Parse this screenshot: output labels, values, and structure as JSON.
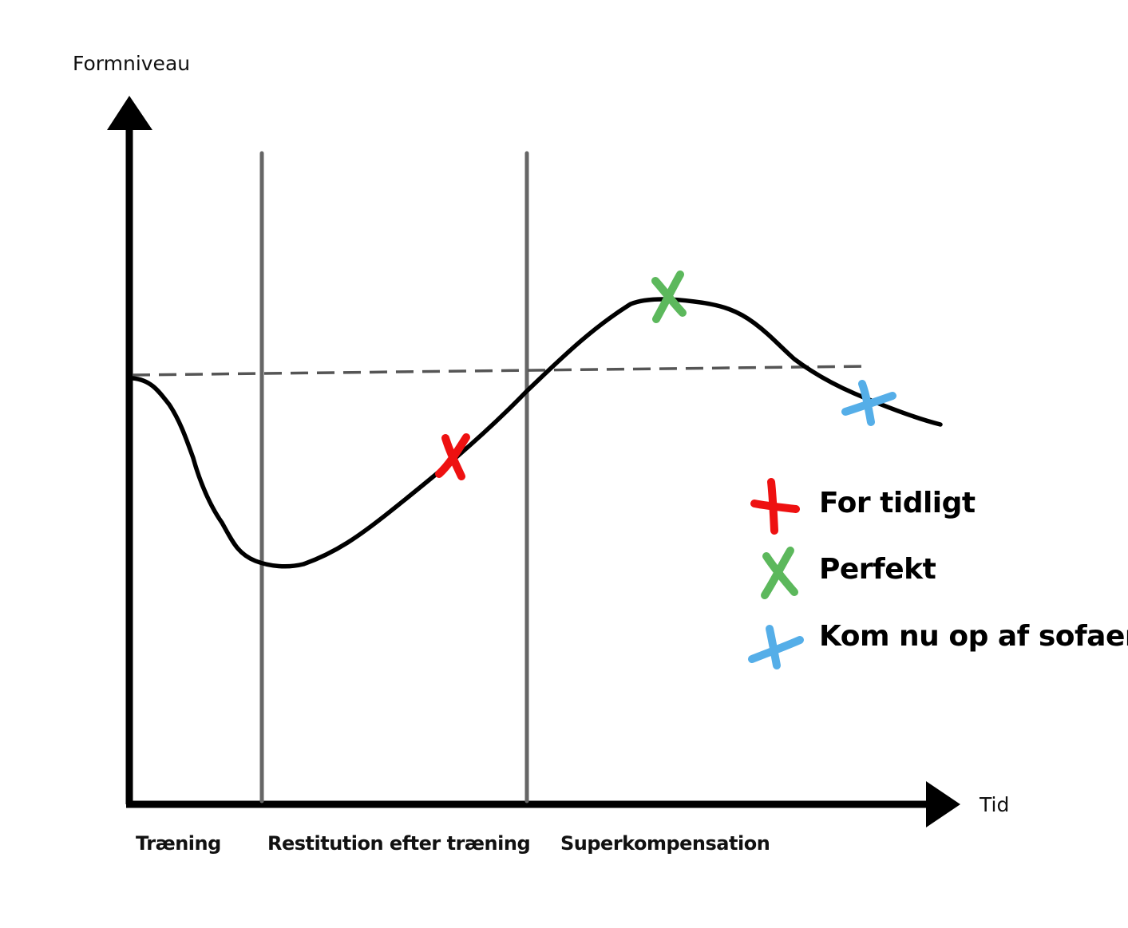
{
  "axes": {
    "y_label": "Formniveau",
    "x_label": "Tid"
  },
  "phases": [
    "Træning",
    "Restitution efter træning",
    "Superkompensation"
  ],
  "legend": [
    {
      "label": "For tidligt",
      "color": "#ee1111",
      "icon": "cross-mark-icon"
    },
    {
      "label": "Perfekt",
      "color": "#5cb85c",
      "icon": "cross-mark-icon"
    },
    {
      "label": "Kom nu op af sofaen",
      "color": "#55aee8",
      "icon": "cross-mark-icon"
    }
  ],
  "colors": {
    "axis": "#000000",
    "curve": "#000000",
    "phase_divider": "#666666",
    "baseline_dashed": "#555555"
  }
}
